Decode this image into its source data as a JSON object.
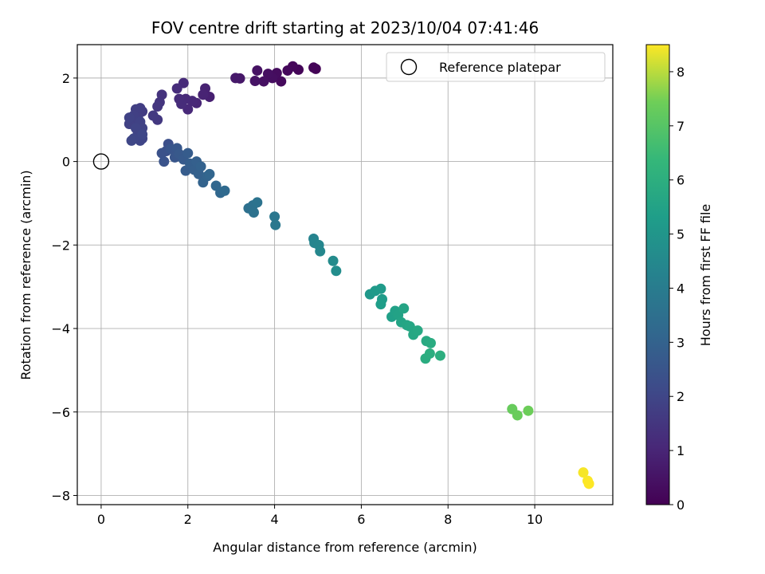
{
  "chart_data": {
    "type": "scatter",
    "title": "FOV centre drift starting at 2023/10/04 07:41:46",
    "xlabel": "Angular distance from reference (arcmin)",
    "ylabel": "Rotation from reference (arcmin)",
    "xlim": [
      -0.55,
      11.8
    ],
    "ylim": [
      -8.22,
      2.8
    ],
    "xticks": [
      0,
      2,
      4,
      6,
      8,
      10
    ],
    "yticks": [
      -8,
      -6,
      -4,
      -2,
      0,
      2
    ],
    "xtick_labels": [
      "0",
      "2",
      "4",
      "6",
      "8",
      "10"
    ],
    "ytick_labels": [
      "−8",
      "−6",
      "−4",
      "−2",
      "0",
      "2"
    ],
    "grid": true,
    "legend": {
      "position": "top-right",
      "entries": [
        "Reference platepar"
      ]
    },
    "colorbar": {
      "label": "Hours from first FF file",
      "colormap": "viridis",
      "range": [
        0,
        8.5
      ],
      "ticks": [
        0,
        1,
        2,
        3,
        4,
        5,
        6,
        7,
        8
      ],
      "tick_labels": [
        "0",
        "1",
        "2",
        "3",
        "4",
        "5",
        "6",
        "7",
        "8"
      ]
    },
    "reference_point": {
      "x": 0,
      "y": 0
    },
    "points": [
      {
        "x": 4.95,
        "y": 2.22,
        "t": 0.05
      },
      {
        "x": 4.9,
        "y": 2.25,
        "t": 0.08
      },
      {
        "x": 4.55,
        "y": 2.2,
        "t": 0.12
      },
      {
        "x": 4.42,
        "y": 2.28,
        "t": 0.15
      },
      {
        "x": 4.3,
        "y": 2.18,
        "t": 0.2
      },
      {
        "x": 4.15,
        "y": 1.92,
        "t": 0.25
      },
      {
        "x": 4.05,
        "y": 2.12,
        "t": 0.3
      },
      {
        "x": 3.95,
        "y": 2.0,
        "t": 0.35
      },
      {
        "x": 3.85,
        "y": 2.1,
        "t": 0.38
      },
      {
        "x": 3.75,
        "y": 1.92,
        "t": 0.42
      },
      {
        "x": 3.6,
        "y": 2.18,
        "t": 0.45
      },
      {
        "x": 3.55,
        "y": 1.93,
        "t": 0.5
      },
      {
        "x": 3.2,
        "y": 1.99,
        "t": 0.6
      },
      {
        "x": 3.1,
        "y": 2.0,
        "t": 0.65
      },
      {
        "x": 2.5,
        "y": 1.55,
        "t": 0.85
      },
      {
        "x": 2.4,
        "y": 1.75,
        "t": 0.9
      },
      {
        "x": 2.35,
        "y": 1.6,
        "t": 0.95
      },
      {
        "x": 2.2,
        "y": 1.4,
        "t": 1.0
      },
      {
        "x": 2.1,
        "y": 1.45,
        "t": 1.05
      },
      {
        "x": 2.0,
        "y": 1.25,
        "t": 1.1
      },
      {
        "x": 1.95,
        "y": 1.5,
        "t": 1.12
      },
      {
        "x": 1.9,
        "y": 1.88,
        "t": 1.15
      },
      {
        "x": 1.85,
        "y": 1.38,
        "t": 1.18
      },
      {
        "x": 1.8,
        "y": 1.5,
        "t": 1.2
      },
      {
        "x": 1.75,
        "y": 1.75,
        "t": 1.22
      },
      {
        "x": 1.4,
        "y": 1.6,
        "t": 1.4
      },
      {
        "x": 1.35,
        "y": 1.42,
        "t": 1.45
      },
      {
        "x": 1.3,
        "y": 1.32,
        "t": 1.5
      },
      {
        "x": 1.3,
        "y": 1.0,
        "t": 1.55
      },
      {
        "x": 1.2,
        "y": 1.1,
        "t": 1.6
      },
      {
        "x": 0.95,
        "y": 1.2,
        "t": 1.7
      },
      {
        "x": 0.9,
        "y": 1.28,
        "t": 1.72
      },
      {
        "x": 0.85,
        "y": 1.05,
        "t": 1.75
      },
      {
        "x": 0.8,
        "y": 1.25,
        "t": 1.78
      },
      {
        "x": 0.75,
        "y": 1.1,
        "t": 1.8
      },
      {
        "x": 0.7,
        "y": 1.0,
        "t": 1.82
      },
      {
        "x": 0.65,
        "y": 0.9,
        "t": 1.84
      },
      {
        "x": 0.65,
        "y": 1.05,
        "t": 1.86
      },
      {
        "x": 0.9,
        "y": 0.95,
        "t": 1.88
      },
      {
        "x": 0.95,
        "y": 0.8,
        "t": 1.9
      },
      {
        "x": 0.85,
        "y": 0.7,
        "t": 1.92
      },
      {
        "x": 0.8,
        "y": 0.8,
        "t": 1.94
      },
      {
        "x": 0.95,
        "y": 0.55,
        "t": 1.96
      },
      {
        "x": 0.9,
        "y": 0.5,
        "t": 1.98
      },
      {
        "x": 0.75,
        "y": 0.55,
        "t": 2.0
      },
      {
        "x": 0.7,
        "y": 0.5,
        "t": 2.02
      },
      {
        "x": 0.95,
        "y": 0.65,
        "t": 2.04
      },
      {
        "x": 1.55,
        "y": 0.42,
        "t": 2.3
      },
      {
        "x": 1.5,
        "y": 0.25,
        "t": 2.35
      },
      {
        "x": 1.4,
        "y": 0.2,
        "t": 2.4
      },
      {
        "x": 1.45,
        "y": 0.0,
        "t": 2.45
      },
      {
        "x": 1.6,
        "y": 0.3,
        "t": 2.5
      },
      {
        "x": 1.7,
        "y": 0.1,
        "t": 2.55
      },
      {
        "x": 1.75,
        "y": 0.32,
        "t": 2.6
      },
      {
        "x": 1.8,
        "y": 0.18,
        "t": 2.65
      },
      {
        "x": 1.9,
        "y": 0.05,
        "t": 2.7
      },
      {
        "x": 1.95,
        "y": -0.22,
        "t": 2.75
      },
      {
        "x": 2.0,
        "y": 0.2,
        "t": 2.78
      },
      {
        "x": 2.05,
        "y": -0.05,
        "t": 2.82
      },
      {
        "x": 2.15,
        "y": -0.2,
        "t": 2.86
      },
      {
        "x": 2.2,
        "y": 0.0,
        "t": 2.9
      },
      {
        "x": 2.25,
        "y": -0.3,
        "t": 2.94
      },
      {
        "x": 2.3,
        "y": -0.12,
        "t": 2.98
      },
      {
        "x": 2.35,
        "y": -0.5,
        "t": 3.02
      },
      {
        "x": 2.45,
        "y": -0.35,
        "t": 3.06
      },
      {
        "x": 2.5,
        "y": -0.3,
        "t": 3.1
      },
      {
        "x": 2.65,
        "y": -0.58,
        "t": 3.15
      },
      {
        "x": 2.75,
        "y": -0.75,
        "t": 3.2
      },
      {
        "x": 2.85,
        "y": -0.7,
        "t": 3.25
      },
      {
        "x": 3.4,
        "y": -1.12,
        "t": 3.5
      },
      {
        "x": 3.5,
        "y": -1.05,
        "t": 3.55
      },
      {
        "x": 3.52,
        "y": -1.22,
        "t": 3.6
      },
      {
        "x": 3.6,
        "y": -0.98,
        "t": 3.65
      },
      {
        "x": 4.0,
        "y": -1.32,
        "t": 3.8
      },
      {
        "x": 4.02,
        "y": -1.52,
        "t": 3.85
      },
      {
        "x": 4.9,
        "y": -1.85,
        "t": 4.3
      },
      {
        "x": 4.92,
        "y": -1.95,
        "t": 4.35
      },
      {
        "x": 5.02,
        "y": -2.0,
        "t": 4.4
      },
      {
        "x": 5.05,
        "y": -2.15,
        "t": 4.45
      },
      {
        "x": 5.35,
        "y": -2.38,
        "t": 4.6
      },
      {
        "x": 5.42,
        "y": -2.62,
        "t": 4.65
      },
      {
        "x": 6.2,
        "y": -3.18,
        "t": 5.1
      },
      {
        "x": 6.32,
        "y": -3.1,
        "t": 5.15
      },
      {
        "x": 6.45,
        "y": -3.05,
        "t": 5.2
      },
      {
        "x": 6.48,
        "y": -3.3,
        "t": 5.25
      },
      {
        "x": 6.45,
        "y": -3.42,
        "t": 5.3
      },
      {
        "x": 6.7,
        "y": -3.72,
        "t": 5.4
      },
      {
        "x": 6.78,
        "y": -3.58,
        "t": 5.45
      },
      {
        "x": 6.85,
        "y": -3.68,
        "t": 5.5
      },
      {
        "x": 6.92,
        "y": -3.85,
        "t": 5.55
      },
      {
        "x": 6.98,
        "y": -3.52,
        "t": 5.58
      },
      {
        "x": 7.05,
        "y": -3.92,
        "t": 5.62
      },
      {
        "x": 7.12,
        "y": -3.95,
        "t": 5.66
      },
      {
        "x": 7.2,
        "y": -4.15,
        "t": 5.7
      },
      {
        "x": 7.3,
        "y": -4.05,
        "t": 5.74
      },
      {
        "x": 7.5,
        "y": -4.3,
        "t": 5.8
      },
      {
        "x": 7.6,
        "y": -4.35,
        "t": 5.85
      },
      {
        "x": 7.48,
        "y": -4.72,
        "t": 5.9
      },
      {
        "x": 7.58,
        "y": -4.6,
        "t": 5.95
      },
      {
        "x": 7.82,
        "y": -4.65,
        "t": 6.0
      },
      {
        "x": 9.48,
        "y": -5.93,
        "t": 7.3
      },
      {
        "x": 9.6,
        "y": -6.08,
        "t": 7.35
      },
      {
        "x": 9.85,
        "y": -5.97,
        "t": 7.4
      },
      {
        "x": 11.12,
        "y": -7.45,
        "t": 8.45
      },
      {
        "x": 11.22,
        "y": -7.65,
        "t": 8.48
      },
      {
        "x": 11.25,
        "y": -7.72,
        "t": 8.5
      }
    ]
  }
}
